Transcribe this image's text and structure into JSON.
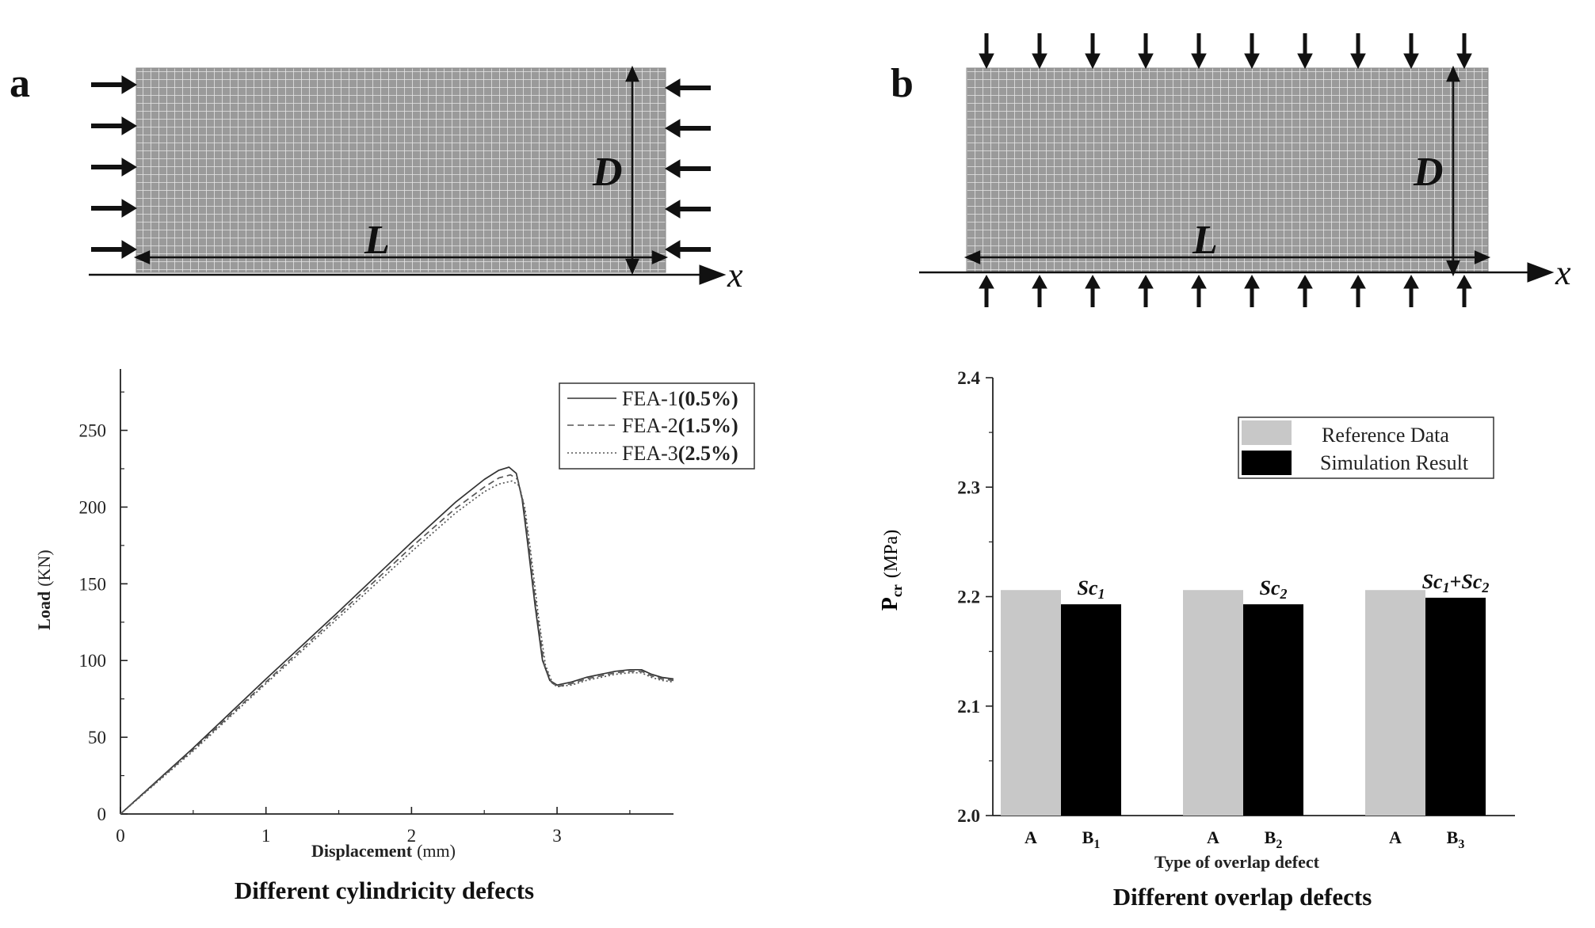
{
  "panels": {
    "a": {
      "label": "a",
      "dim_length": "L",
      "dim_diameter": "D",
      "x_axis": "x",
      "load_direction": "axial"
    },
    "b": {
      "label": "b",
      "dim_length": "L",
      "dim_diameter": "D",
      "x_axis": "x",
      "load_direction": "radial"
    }
  },
  "captions": {
    "left": "Different cylindricity defects",
    "right": "Different overlap defects"
  },
  "chart_data": [
    {
      "type": "line",
      "title": "",
      "xlabel_bold": "Displacement",
      "xlabel_unit": "(mm)",
      "ylabel_bold": "Load",
      "ylabel_unit": "(KN)",
      "xlim": [
        0,
        3.8
      ],
      "ylim": [
        0,
        290
      ],
      "xticks": [
        0,
        1,
        2,
        3
      ],
      "yticks": [
        0,
        50,
        100,
        150,
        200,
        250
      ],
      "legend_position": "top-right",
      "series": [
        {
          "name": "FEA-1",
          "param": "(0.5%)",
          "style": "solid",
          "x": [
            0,
            0.5,
            1.0,
            1.5,
            2.0,
            2.3,
            2.5,
            2.6,
            2.67,
            2.72,
            2.76,
            2.8,
            2.85,
            2.9,
            2.95,
            3.0,
            3.1,
            3.2,
            3.3,
            3.4,
            3.5,
            3.58,
            3.65,
            3.72,
            3.8
          ],
          "y": [
            0,
            43,
            88,
            132,
            177,
            203,
            218,
            224,
            226,
            222,
            205,
            175,
            135,
            100,
            87,
            84,
            86,
            89,
            91,
            93,
            94,
            94,
            91,
            89,
            88
          ]
        },
        {
          "name": "FEA-2",
          "param": "(1.5%)",
          "style": "dashed",
          "x": [
            0,
            0.5,
            1.0,
            1.5,
            2.0,
            2.3,
            2.5,
            2.6,
            2.68,
            2.73,
            2.77,
            2.81,
            2.86,
            2.91,
            2.96,
            3.0,
            3.1,
            3.2,
            3.3,
            3.4,
            3.5,
            3.58,
            3.65,
            3.72,
            3.8
          ],
          "y": [
            0,
            42,
            86,
            130,
            174,
            199,
            213,
            219,
            221,
            218,
            202,
            172,
            132,
            98,
            86,
            83,
            85,
            88,
            90,
            92,
            93,
            93,
            90,
            88,
            87
          ]
        },
        {
          "name": "FEA-3",
          "param": "(2.5%)",
          "style": "dotted",
          "x": [
            0,
            0.5,
            1.0,
            1.5,
            2.0,
            2.3,
            2.5,
            2.6,
            2.69,
            2.74,
            2.78,
            2.82,
            2.87,
            2.92,
            2.97,
            3.0,
            3.1,
            3.2,
            3.3,
            3.4,
            3.5,
            3.58,
            3.65,
            3.72,
            3.8
          ],
          "y": [
            0,
            41,
            85,
            128,
            171,
            196,
            210,
            215,
            217,
            214,
            199,
            170,
            130,
            97,
            85,
            83,
            84,
            87,
            89,
            91,
            92,
            92,
            89,
            87,
            86
          ]
        }
      ]
    },
    {
      "type": "bar",
      "title": "",
      "xlabel": "Type of overlap defect",
      "ylabel_main": "P",
      "ylabel_sub": "cr",
      "ylabel_unit": "(MPa)",
      "ylim": [
        2.0,
        2.4
      ],
      "yticks": [
        "2.0",
        "2.1",
        "2.2",
        "2.3",
        "2.4"
      ],
      "legend_position": "top-right",
      "legend": [
        {
          "name": "Reference Data",
          "color": "#c8c8c8"
        },
        {
          "name": "Simulation Result",
          "color": "#000000"
        }
      ],
      "groups": [
        {
          "label": "Sc1",
          "label_main": "Sc",
          "label_sub": "1",
          "bars": [
            {
              "category": "A",
              "sub": "",
              "series": "Reference Data",
              "value": 2.206
            },
            {
              "category": "B",
              "sub": "1",
              "series": "Simulation Result",
              "value": 2.193
            }
          ]
        },
        {
          "label": "Sc2",
          "label_main": "Sc",
          "label_sub": "2",
          "bars": [
            {
              "category": "A",
              "sub": "",
              "series": "Reference Data",
              "value": 2.206
            },
            {
              "category": "B",
              "sub": "2",
              "series": "Simulation Result",
              "value": 2.193
            }
          ]
        },
        {
          "label": "Sc1+Sc2",
          "label_main": "Sc",
          "label_sub": "1",
          "label_plus": "+",
          "label_main2": "Sc",
          "label_sub2": "2",
          "bars": [
            {
              "category": "A",
              "sub": "",
              "series": "Reference Data",
              "value": 2.206
            },
            {
              "category": "B",
              "sub": "3",
              "series": "Simulation Result",
              "value": 2.199
            }
          ]
        }
      ],
      "colors": {
        "reference": "#c8c8c8",
        "simulation": "#000000"
      }
    }
  ]
}
